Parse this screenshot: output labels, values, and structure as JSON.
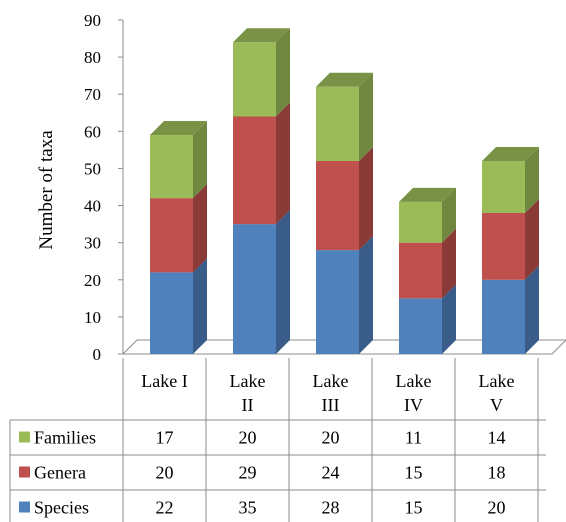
{
  "chart_data": {
    "type": "bar",
    "stacked": true,
    "three_d": true,
    "ylabel": "Number of taxa",
    "ylim": [
      0,
      90
    ],
    "yticks": [
      0,
      10,
      20,
      30,
      40,
      50,
      60,
      70,
      80,
      90
    ],
    "categories": [
      {
        "line1": "Lake I",
        "line2": ""
      },
      {
        "line1": "Lake",
        "line2": "II"
      },
      {
        "line1": "Lake",
        "line2": "III"
      },
      {
        "line1": "Lake",
        "line2": "IV"
      },
      {
        "line1": "Lake",
        "line2": "V"
      }
    ],
    "series": [
      {
        "name": "Species",
        "color": "#4f81bd",
        "values": [
          22,
          35,
          28,
          15,
          20
        ]
      },
      {
        "name": "Genera",
        "color": "#c0504d",
        "values": [
          20,
          29,
          24,
          15,
          18
        ]
      },
      {
        "name": "Families",
        "color": "#9bbb59",
        "values": [
          17,
          20,
          20,
          11,
          14
        ]
      }
    ],
    "legend": "data-table",
    "table_row_order": [
      "Families",
      "Genera",
      "Species"
    ]
  }
}
